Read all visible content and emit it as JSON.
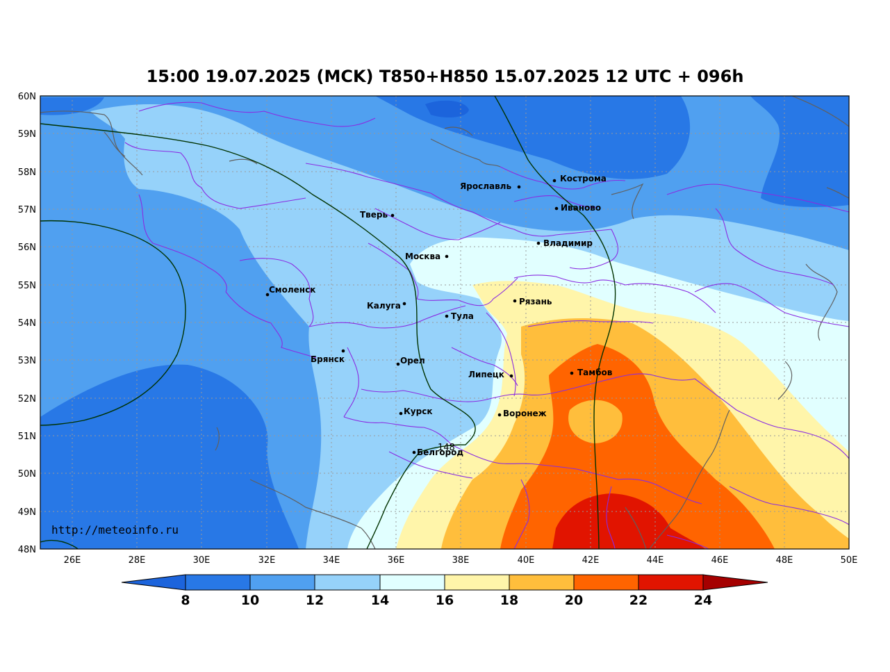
{
  "title": "15:00 19.07.2025 (MCK) T850+H850 15.07.2025 12 UTC + 096h",
  "watermark": "http://meteoinfo.ru",
  "lat_labels": [
    "60N",
    "59N",
    "58N",
    "57N",
    "56N",
    "55N",
    "54N",
    "53N",
    "52N",
    "51N",
    "50N",
    "49N",
    "48N"
  ],
  "lon_labels": [
    "26E",
    "28E",
    "30E",
    "32E",
    "34E",
    "36E",
    "38E",
    "40E",
    "42E",
    "44E",
    "46E",
    "48E",
    "50E"
  ],
  "contour_label": "148",
  "cities": [
    {
      "name": "Кострома"
    },
    {
      "name": "Ярославль"
    },
    {
      "name": "Иваново"
    },
    {
      "name": "Тверь"
    },
    {
      "name": "Владимир"
    },
    {
      "name": "Москва"
    },
    {
      "name": "Смоленск"
    },
    {
      "name": "Рязань"
    },
    {
      "name": "Калуга"
    },
    {
      "name": "Тула"
    },
    {
      "name": "Брянск"
    },
    {
      "name": "Орел"
    },
    {
      "name": "Тамбов"
    },
    {
      "name": "Липецк"
    },
    {
      "name": "Курск"
    },
    {
      "name": "Воронеж"
    },
    {
      "name": "Белгород"
    }
  ],
  "colorbar": {
    "ticks": [
      "8",
      "10",
      "12",
      "14",
      "16",
      "18",
      "20",
      "22",
      "24"
    ],
    "colors": [
      "#1c64dc",
      "#2878e6",
      "#50a0f0",
      "#96d2fa",
      "#e1ffff",
      "#fff5aa",
      "#ffbe3c",
      "#ff6400",
      "#e11400",
      "#a50000"
    ]
  }
}
